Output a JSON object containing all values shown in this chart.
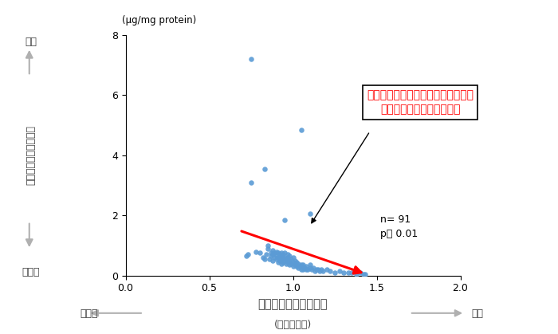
{
  "scatter_x": [
    0.72,
    0.73,
    0.75,
    0.78,
    0.8,
    0.82,
    0.83,
    0.84,
    0.85,
    0.85,
    0.86,
    0.87,
    0.87,
    0.88,
    0.88,
    0.88,
    0.89,
    0.89,
    0.9,
    0.9,
    0.9,
    0.91,
    0.91,
    0.91,
    0.92,
    0.92,
    0.92,
    0.93,
    0.93,
    0.93,
    0.93,
    0.94,
    0.94,
    0.94,
    0.95,
    0.95,
    0.95,
    0.96,
    0.96,
    0.97,
    0.97,
    0.97,
    0.98,
    0.98,
    0.98,
    0.99,
    0.99,
    1.0,
    1.0,
    1.0,
    1.01,
    1.01,
    1.02,
    1.02,
    1.03,
    1.03,
    1.04,
    1.05,
    1.05,
    1.06,
    1.06,
    1.07,
    1.08,
    1.08,
    1.09,
    1.1,
    1.1,
    1.11,
    1.12,
    1.13,
    1.14,
    1.15,
    1.16,
    1.17,
    1.18,
    1.2,
    1.22,
    1.25,
    1.28,
    1.3,
    1.33,
    1.35,
    1.38,
    1.4,
    1.42,
    1.43,
    0.75,
    0.83,
    1.05,
    1.1,
    0.95
  ],
  "scatter_y": [
    0.65,
    0.7,
    3.1,
    0.8,
    0.75,
    0.6,
    0.55,
    0.7,
    0.9,
    1.0,
    0.55,
    0.65,
    0.75,
    0.5,
    0.7,
    0.85,
    0.6,
    0.75,
    0.55,
    0.65,
    0.8,
    0.45,
    0.6,
    0.75,
    0.5,
    0.65,
    0.7,
    0.4,
    0.55,
    0.65,
    0.75,
    0.45,
    0.6,
    0.7,
    0.5,
    0.6,
    0.75,
    0.4,
    0.55,
    0.45,
    0.6,
    0.7,
    0.35,
    0.5,
    0.65,
    0.4,
    0.55,
    0.3,
    0.45,
    0.6,
    0.35,
    0.5,
    0.3,
    0.45,
    0.25,
    0.4,
    0.3,
    0.2,
    0.35,
    0.2,
    0.35,
    0.25,
    0.2,
    0.3,
    0.2,
    0.25,
    0.35,
    0.2,
    0.25,
    0.15,
    0.2,
    0.2,
    0.15,
    0.2,
    0.15,
    0.2,
    0.15,
    0.1,
    0.15,
    0.1,
    0.1,
    0.1,
    0.05,
    0.1,
    0.05,
    0.05,
    7.2,
    3.55,
    4.85,
    2.05,
    1.85
  ],
  "dot_color": "#5B9BD5",
  "trendline_x_start": 0.68,
  "trendline_x_end": 1.435,
  "trendline_y_start": 1.5,
  "trendline_y_end": 0.05,
  "trendline_color": "#FF0000",
  "xlim": [
    0.0,
    2.0
  ],
  "ylim": [
    0.0,
    8.0
  ],
  "xticks": [
    0,
    0.5,
    1.0,
    1.5,
    2.0
  ],
  "yticks": [
    0,
    2,
    4,
    6,
    8
  ],
  "unit_label": "(μg/mg protein)",
  "y_rotated_label": "角質のウロカニン酸量",
  "y_top_label": "多い",
  "y_bottom_label": "少ない",
  "x_center_label": "メラニンインデックス",
  "x_sub_label": "(メラニン量)",
  "x_left_label": "少ない",
  "x_right_label": "多い",
  "annotation_text": "角質のウロカニン酸量が少ないほど\n肌のメラニン量は多くなる",
  "annotation_color": "#FF0000",
  "stats_line1": "n= 91",
  "stats_line2": "p＜ 0.01",
  "arrow_color": "#B0B0B0",
  "label_color": "#404040"
}
